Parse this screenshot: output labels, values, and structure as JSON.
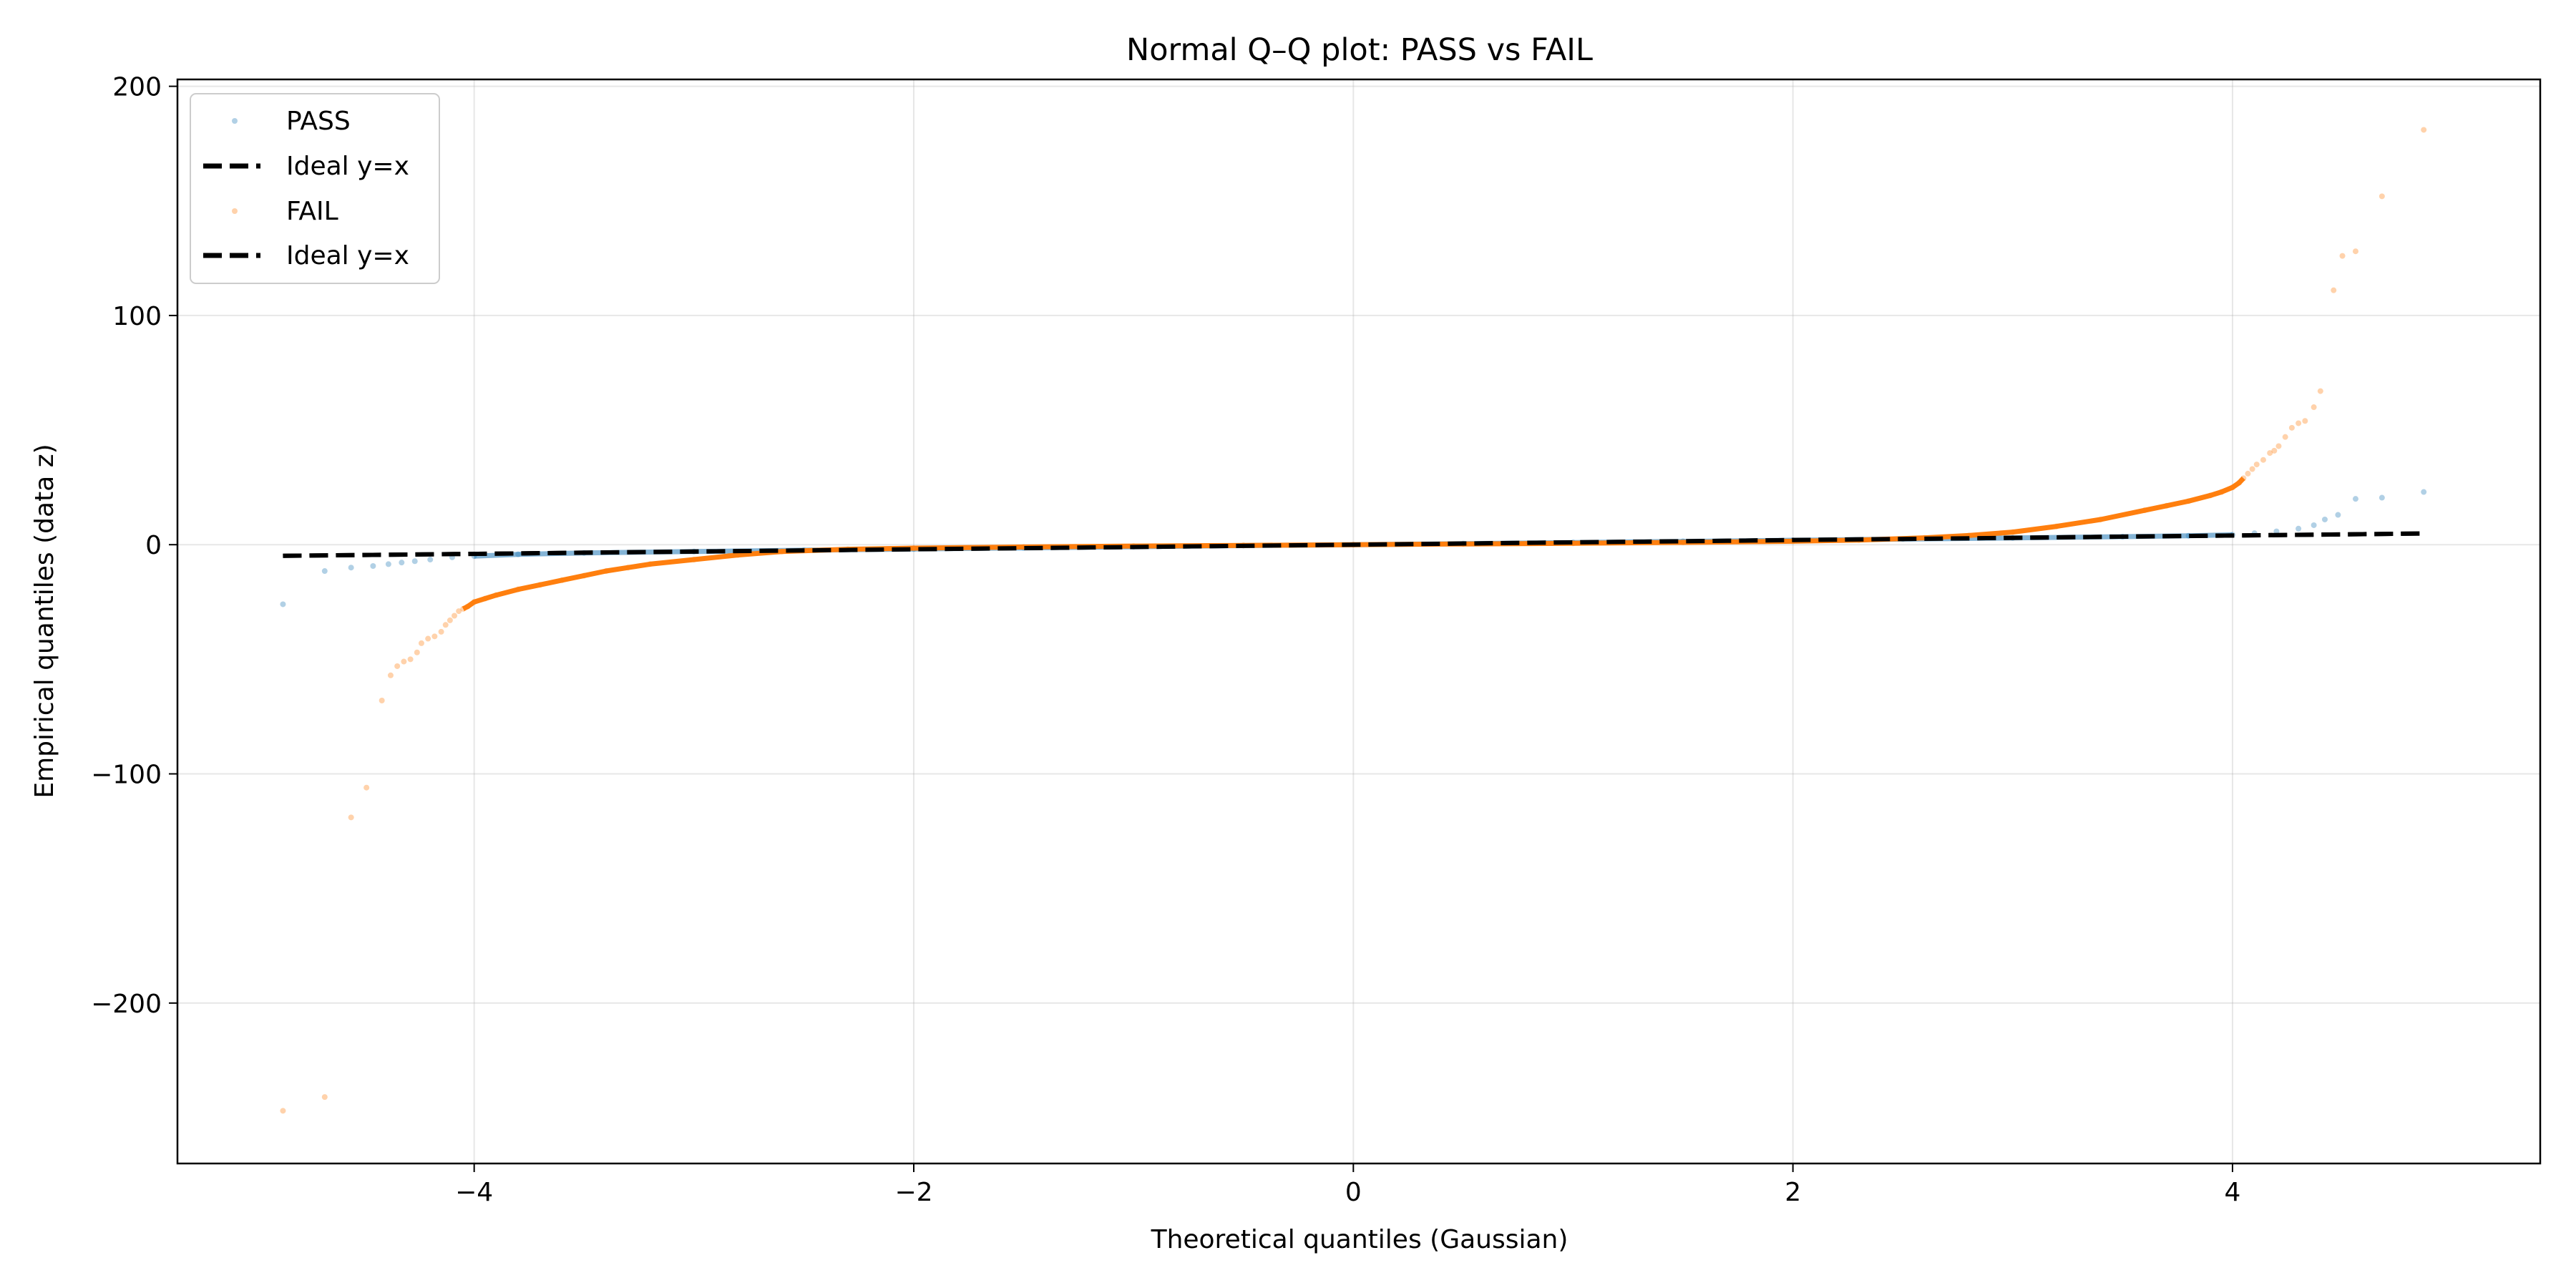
{
  "chart_data": {
    "type": "scatter",
    "title": "Normal Q–Q plot: PASS vs FAIL",
    "xlabel": "Theoretical quantiles (Gaussian)",
    "ylabel": "Empirical quantiles (data z)",
    "xlim": [
      -5.35,
      5.4
    ],
    "ylim": [
      -270,
      203
    ],
    "xticks": [
      -4,
      -2,
      0,
      2,
      4
    ],
    "yticks": [
      -200,
      -100,
      0,
      100,
      200
    ],
    "xtick_labels": [
      "−4",
      "−2",
      "0",
      "2",
      "4"
    ],
    "ytick_labels": [
      "−200",
      "−100",
      "0",
      "100",
      "200"
    ],
    "grid": true,
    "legend_position": "upper-left",
    "series": [
      {
        "name": "PASS",
        "kind": "scatter",
        "color": "#1f77b4",
        "points": [
          [
            -4.87,
            -26
          ],
          [
            -4.68,
            -11.5
          ],
          [
            -4.56,
            -10
          ],
          [
            -4.46,
            -9.3
          ],
          [
            -4.39,
            -8.5
          ],
          [
            -4.33,
            -7.8
          ],
          [
            -4.27,
            -7.2
          ],
          [
            -4.2,
            -6.5
          ],
          [
            -4.1,
            -5.5
          ],
          [
            -4.0,
            -5.0
          ],
          [
            -3.8,
            -4.2
          ],
          [
            -3.5,
            -3.6
          ],
          [
            -3.0,
            -3.0
          ],
          [
            -2.5,
            -2.4
          ],
          [
            -2.0,
            -1.9
          ],
          [
            -1.5,
            -1.4
          ],
          [
            -1.0,
            -0.9
          ],
          [
            -0.5,
            -0.4
          ],
          [
            0,
            0
          ],
          [
            0.5,
            0.45
          ],
          [
            1.0,
            0.95
          ],
          [
            1.5,
            1.45
          ],
          [
            2.0,
            1.95
          ],
          [
            2.5,
            2.45
          ],
          [
            3.0,
            2.95
          ],
          [
            3.5,
            3.5
          ],
          [
            3.8,
            3.9
          ],
          [
            4.0,
            4.3
          ],
          [
            4.1,
            5.0
          ],
          [
            4.2,
            5.8
          ],
          [
            4.3,
            7.0
          ],
          [
            4.37,
            8.5
          ],
          [
            4.42,
            11
          ],
          [
            4.48,
            13
          ],
          [
            4.56,
            20
          ],
          [
            4.68,
            20.5
          ],
          [
            4.87,
            23
          ]
        ]
      },
      {
        "name": "Ideal y=x",
        "kind": "line",
        "color": "#000000",
        "points": [
          [
            -4.87,
            -4.87
          ],
          [
            4.87,
            4.87
          ]
        ]
      },
      {
        "name": "FAIL",
        "kind": "scatter",
        "color": "#ff7f0e",
        "points": [
          [
            -4.87,
            -247
          ],
          [
            -4.68,
            -241
          ],
          [
            -4.56,
            -119
          ],
          [
            -4.49,
            -106
          ],
          [
            -4.42,
            -68
          ],
          [
            -4.38,
            -57
          ],
          [
            -4.35,
            -53
          ],
          [
            -4.32,
            -51
          ],
          [
            -4.29,
            -50
          ],
          [
            -4.26,
            -47
          ],
          [
            -4.24,
            -43
          ],
          [
            -4.21,
            -41
          ],
          [
            -4.18,
            -40
          ],
          [
            -4.15,
            -38
          ],
          [
            -4.13,
            -35
          ],
          [
            -4.11,
            -33
          ],
          [
            -4.09,
            -31
          ],
          [
            -4.07,
            -29
          ],
          [
            -4.05,
            -28
          ],
          [
            -4.03,
            -27
          ],
          [
            -4.0,
            -25
          ],
          [
            -3.95,
            -23.5
          ],
          [
            -3.9,
            -22
          ],
          [
            -3.8,
            -19.5
          ],
          [
            -3.7,
            -17.5
          ],
          [
            -3.6,
            -15.5
          ],
          [
            -3.5,
            -13.5
          ],
          [
            -3.4,
            -11.5
          ],
          [
            -3.3,
            -10
          ],
          [
            -3.2,
            -8.5
          ],
          [
            -3.0,
            -6.5
          ],
          [
            -2.8,
            -4.5
          ],
          [
            -2.6,
            -3.0
          ],
          [
            -2.3,
            -2.0
          ],
          [
            -2.0,
            -1.5
          ],
          [
            -1.5,
            -1.0
          ],
          [
            -1.0,
            -0.6
          ],
          [
            -0.5,
            -0.3
          ],
          [
            0,
            0
          ],
          [
            0.5,
            0.3
          ],
          [
            1.0,
            0.6
          ],
          [
            1.5,
            1.0
          ],
          [
            2.0,
            1.5
          ],
          [
            2.3,
            2.0
          ],
          [
            2.6,
            3.0
          ],
          [
            2.8,
            4.0
          ],
          [
            3.0,
            5.5
          ],
          [
            3.2,
            8.0
          ],
          [
            3.4,
            11
          ],
          [
            3.6,
            15
          ],
          [
            3.7,
            17
          ],
          [
            3.8,
            19
          ],
          [
            3.9,
            21.5
          ],
          [
            3.95,
            23
          ],
          [
            4.0,
            25
          ],
          [
            4.03,
            27
          ],
          [
            4.05,
            29
          ],
          [
            4.07,
            31
          ],
          [
            4.09,
            33
          ],
          [
            4.11,
            35
          ],
          [
            4.14,
            37
          ],
          [
            4.17,
            40
          ],
          [
            4.19,
            41
          ],
          [
            4.21,
            43
          ],
          [
            4.24,
            47
          ],
          [
            4.27,
            51
          ],
          [
            4.3,
            53
          ],
          [
            4.33,
            54
          ],
          [
            4.37,
            60
          ],
          [
            4.4,
            67
          ],
          [
            4.46,
            111
          ],
          [
            4.5,
            126
          ],
          [
            4.56,
            128
          ],
          [
            4.68,
            152
          ],
          [
            4.87,
            181
          ]
        ]
      },
      {
        "name": "Ideal y=x",
        "kind": "line",
        "color": "#000000",
        "points": [
          [
            -4.87,
            -4.87
          ],
          [
            4.87,
            4.87
          ]
        ]
      }
    ]
  }
}
